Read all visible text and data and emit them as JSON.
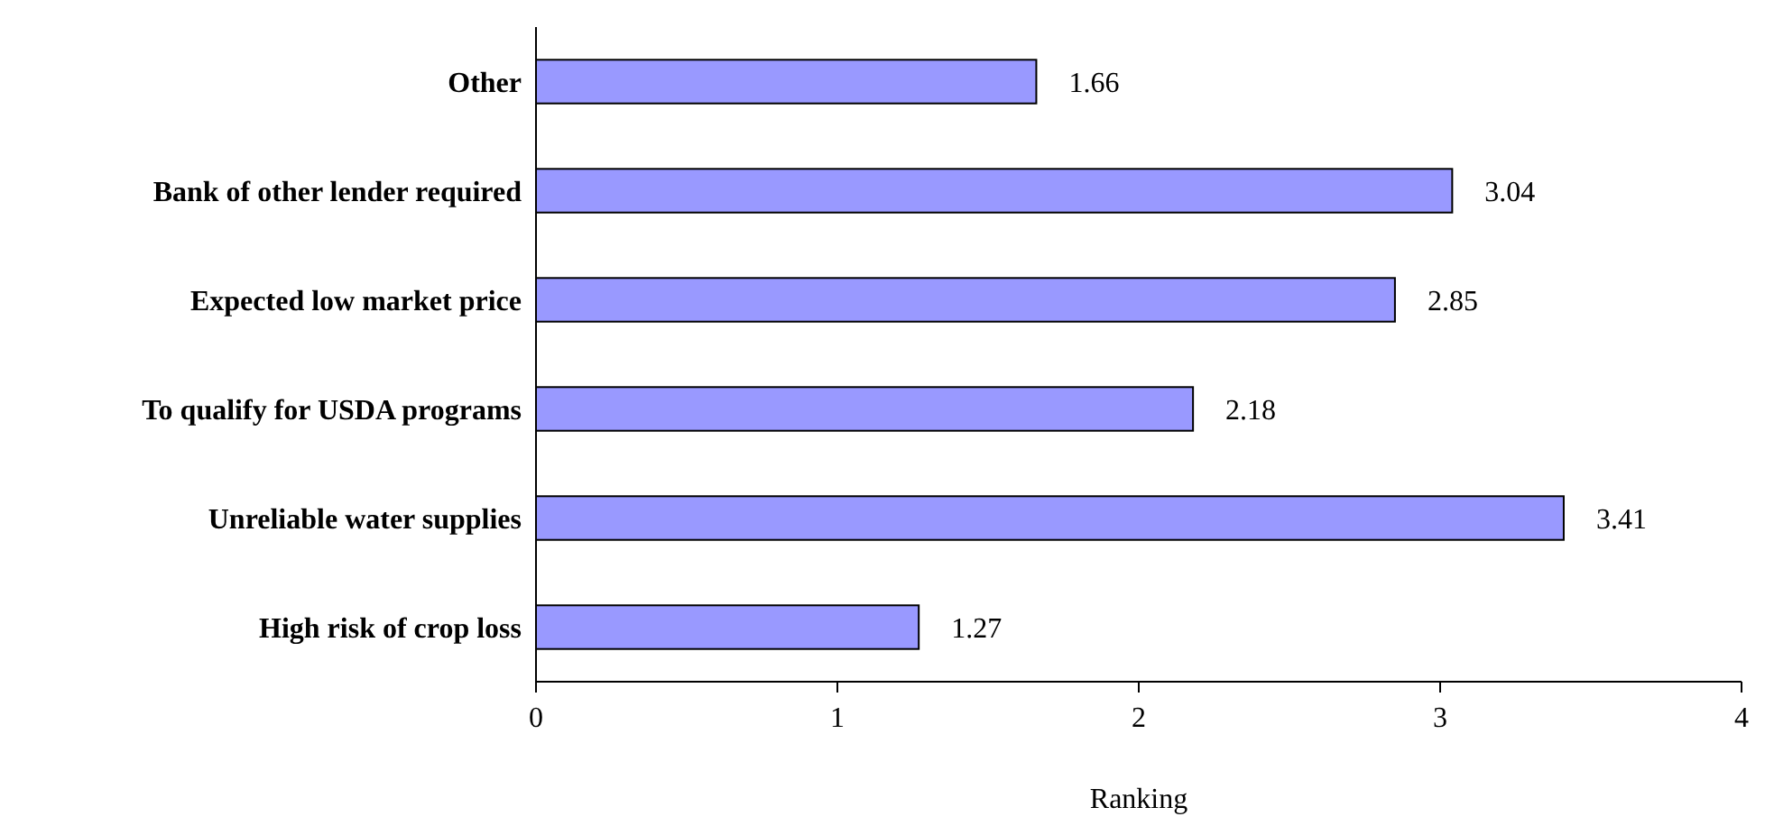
{
  "chart_data": {
    "type": "bar",
    "orientation": "horizontal",
    "xlabel": "Ranking",
    "categories": [
      "Other",
      "Bank of other lender required",
      "Expected low market price",
      "To qualify for USDA programs",
      "Unreliable water supplies",
      "High risk of crop loss"
    ],
    "values": [
      1.66,
      3.04,
      2.85,
      2.18,
      3.41,
      1.27
    ],
    "color": "#9999ff",
    "data_labels": true,
    "xlim": [
      0,
      4
    ],
    "xticks": [
      0,
      1,
      2,
      3,
      4
    ],
    "grid": false
  }
}
